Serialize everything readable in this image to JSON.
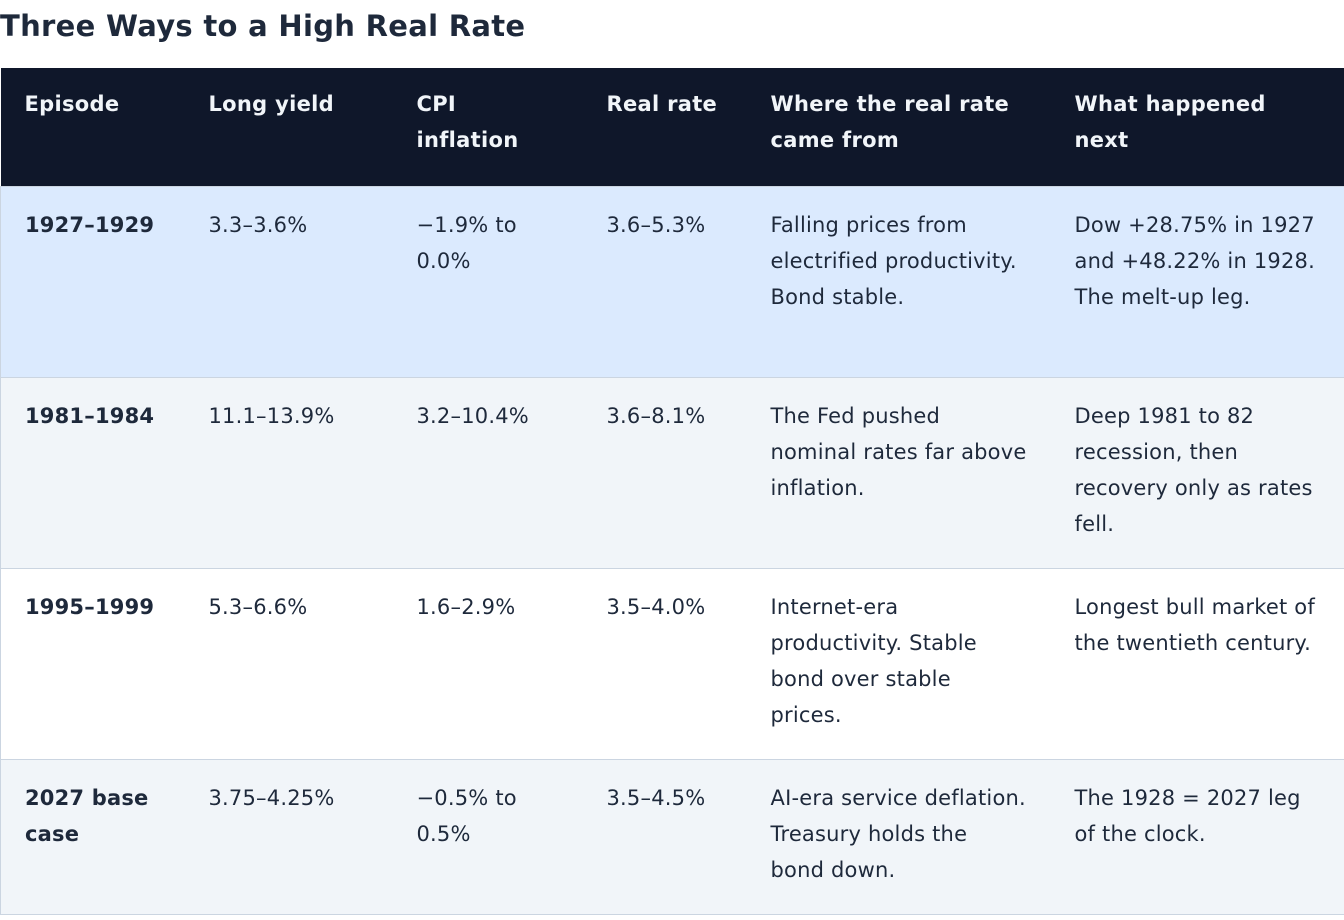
{
  "title": "Three Ways to a High Real Rate",
  "columns": [
    "Episode",
    "Long yield",
    "CPI inflation",
    "Real rate",
    "Where the real rate came from",
    "What happened next"
  ],
  "colors": {
    "header_bg": "#0f172a",
    "highlight_row": "#dbeafe",
    "positive_rate": "#16a34a",
    "negative_rate": "#dc2626"
  },
  "rows": [
    {
      "episode": "1927–1929",
      "long_yield": "3.3–3.6%",
      "cpi": "−1.9% to 0.0%",
      "real_rate": "3.6–5.3%",
      "real_rate_tone": "positive",
      "source": "Falling prices from electrified productivity. Bond stable.",
      "next": "Dow +28.75% in 1927 and +48.22% in 1928. The melt-up leg."
    },
    {
      "episode": "1981–1984",
      "long_yield": "11.1–13.9%",
      "cpi": "3.2–10.4%",
      "real_rate": "3.6–8.1%",
      "real_rate_tone": "negative",
      "source": "The Fed pushed nominal rates far above inflation.",
      "next": "Deep 1981 to 82 recession, then recovery only as rates fell."
    },
    {
      "episode": "1995–1999",
      "long_yield": "5.3–6.6%",
      "cpi": "1.6–2.9%",
      "real_rate": "3.5–4.0%",
      "real_rate_tone": "positive",
      "source": "Internet-era productivity. Stable bond over stable prices.",
      "next": "Longest bull market of the twentieth century."
    },
    {
      "episode": "2027 base case",
      "long_yield": "3.75–4.25%",
      "cpi": "−0.5% to 0.5%",
      "real_rate": "3.5–4.5%",
      "real_rate_tone": "positive",
      "source": "AI-era service deflation. Treasury holds the bond down.",
      "next": "The 1928 = 2027 leg of the clock."
    }
  ]
}
